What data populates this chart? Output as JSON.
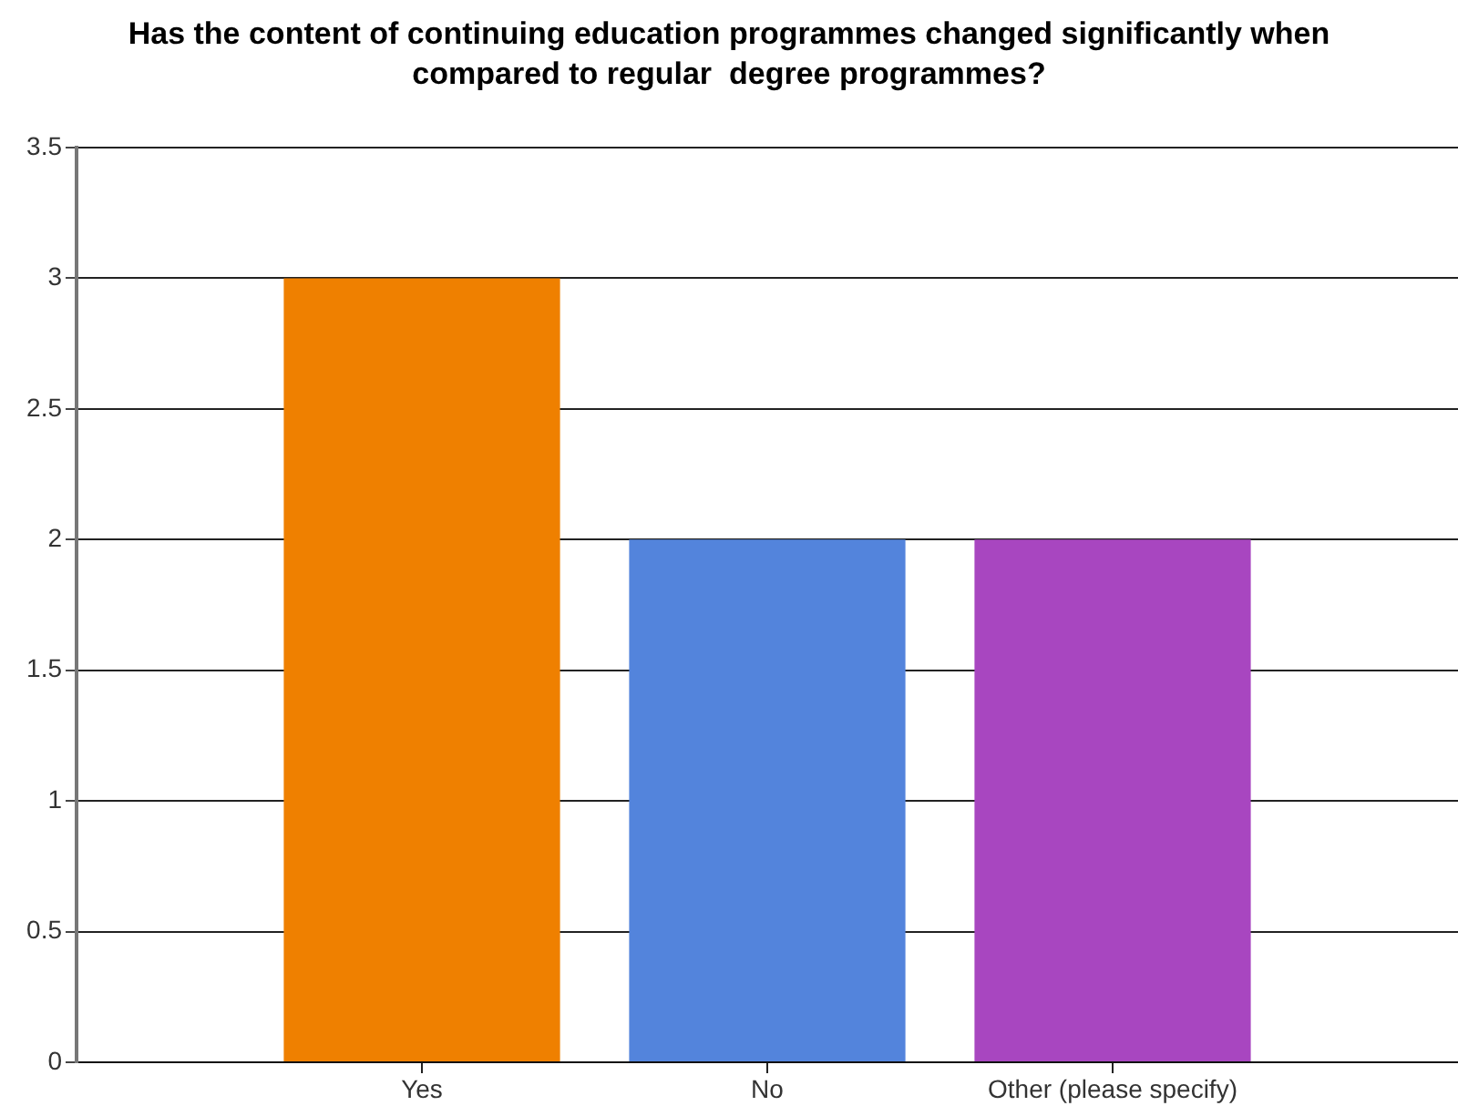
{
  "chart_data": {
    "type": "bar",
    "title": "Has the content of continuing education programmes changed significantly when compared to regular  degree programmes?",
    "categories": [
      "Yes",
      "No",
      "Other (please specify)"
    ],
    "values": [
      3,
      2,
      2
    ],
    "colors": [
      "#ef8000",
      "#5384dc",
      "#a846c0"
    ],
    "ylim": [
      0,
      3.5
    ],
    "yticks": [
      0,
      0.5,
      1,
      1.5,
      2,
      2.5,
      3,
      3.5
    ],
    "grid": "y"
  }
}
